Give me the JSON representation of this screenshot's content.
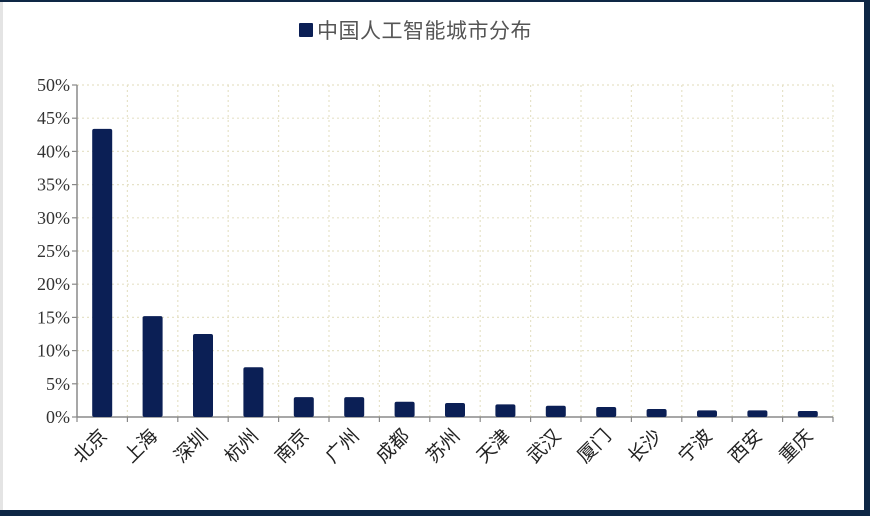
{
  "chart_data": {
    "type": "bar",
    "title": "",
    "legend": [
      "中国人工智能城市分布"
    ],
    "legend_position": "top",
    "xlabel": "",
    "ylabel": "",
    "ylim": [
      0,
      0.5
    ],
    "y_ticks": [
      "0%",
      "5%",
      "10%",
      "15%",
      "20%",
      "25%",
      "30%",
      "35%",
      "40%",
      "45%",
      "50%"
    ],
    "grid": true,
    "categories": [
      "北京",
      "上海",
      "深圳",
      "杭州",
      "南京",
      "广州",
      "成都",
      "苏州",
      "天津",
      "武汉",
      "厦门",
      "长沙",
      "宁波",
      "西安",
      "重庆"
    ],
    "series": [
      {
        "name": "中国人工智能城市分布",
        "color": "#0b1f55",
        "values": [
          0.434,
          0.152,
          0.125,
          0.075,
          0.03,
          0.03,
          0.023,
          0.021,
          0.019,
          0.017,
          0.015,
          0.012,
          0.01,
          0.01,
          0.009
        ]
      }
    ]
  },
  "legend": {
    "label": "中国人工智能城市分布",
    "color": "#0b1f55"
  }
}
